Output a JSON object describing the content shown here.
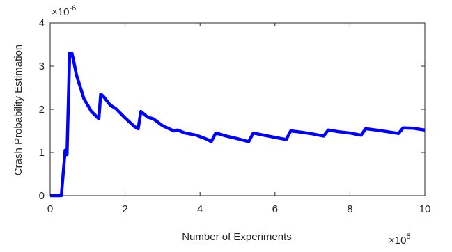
{
  "chart_data": {
    "type": "line",
    "title": "",
    "xlabel": "Number of Experiments",
    "ylabel": "Crash Probability Estimation",
    "x_multiplier": {
      "base": "×10",
      "exp": "5"
    },
    "y_multiplier": {
      "base": "×10",
      "exp": "-6"
    },
    "xlim": [
      0,
      10
    ],
    "ylim": [
      0,
      4
    ],
    "xticks": [
      0,
      2,
      4,
      6,
      8,
      10
    ],
    "yticks": [
      0,
      1,
      2,
      3,
      4
    ],
    "grid": false,
    "series": [
      {
        "color": "#0000ff",
        "x": [
          0.0,
          0.3,
          0.4,
          0.45,
          0.52,
          0.58,
          0.62,
          0.7,
          0.9,
          1.1,
          1.3,
          1.35,
          1.42,
          1.6,
          1.75,
          2.0,
          2.25,
          2.35,
          2.42,
          2.6,
          2.75,
          3.0,
          3.3,
          3.4,
          3.6,
          3.9,
          4.2,
          4.3,
          4.42,
          4.7,
          5.0,
          5.3,
          5.42,
          5.7,
          6.0,
          6.3,
          6.42,
          6.7,
          7.0,
          7.3,
          7.42,
          7.7,
          8.0,
          8.3,
          8.42,
          8.7,
          9.0,
          9.3,
          9.42,
          9.7,
          10.0
        ],
        "y": [
          0.0,
          0.0,
          1.05,
          0.95,
          3.3,
          3.3,
          3.15,
          2.8,
          2.25,
          1.95,
          1.78,
          2.35,
          2.3,
          2.1,
          2.02,
          1.8,
          1.6,
          1.55,
          1.95,
          1.82,
          1.78,
          1.62,
          1.5,
          1.52,
          1.45,
          1.4,
          1.3,
          1.25,
          1.45,
          1.38,
          1.32,
          1.25,
          1.45,
          1.4,
          1.35,
          1.3,
          1.5,
          1.47,
          1.43,
          1.38,
          1.52,
          1.48,
          1.45,
          1.4,
          1.55,
          1.52,
          1.48,
          1.44,
          1.57,
          1.56,
          1.52
        ]
      }
    ]
  }
}
